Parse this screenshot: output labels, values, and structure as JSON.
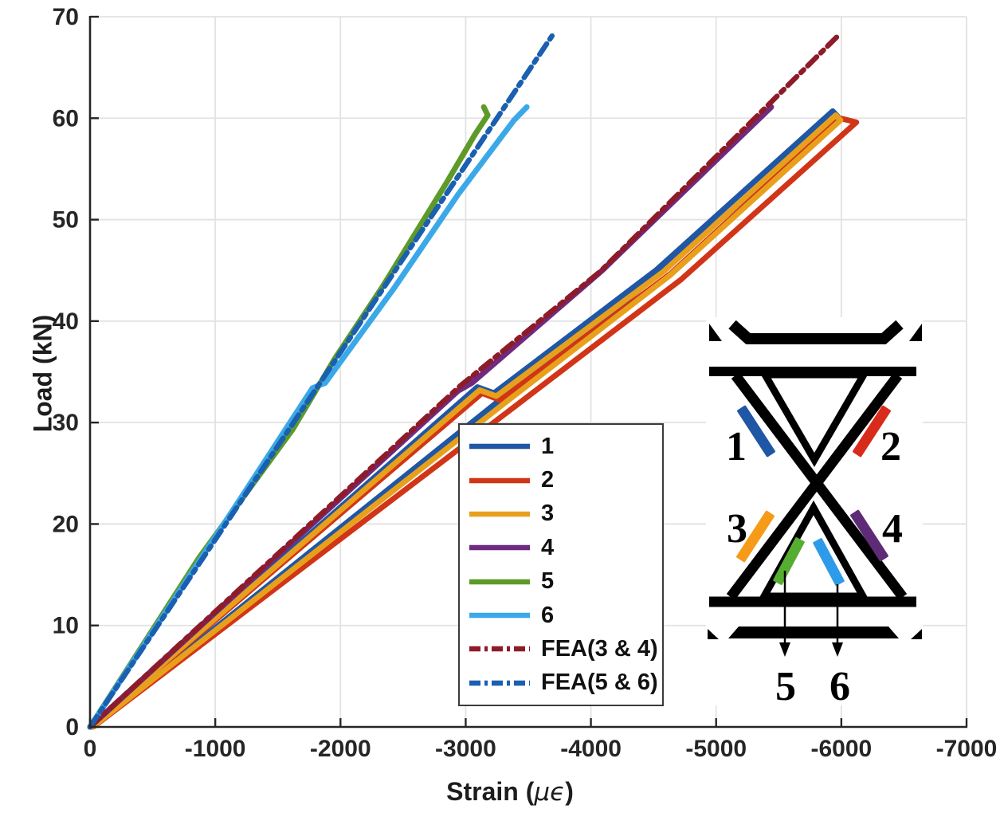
{
  "figure": {
    "ylabel": "Load (kN)",
    "xlabel_prefix": "Strain (",
    "xlabel_mu": "μϵ",
    "xlabel_suffix": ")"
  },
  "chart_data": {
    "type": "line",
    "title": "",
    "xlabel": "Strain (μϵ)",
    "ylabel": "Load (kN)",
    "xlim": [
      0,
      -7000
    ],
    "ylim": [
      0,
      70
    ],
    "x_axis_reversed": true,
    "grid": true,
    "legend_position": "inside-center",
    "x_ticks": [
      0,
      -1000,
      -2000,
      -3000,
      -4000,
      -5000,
      -6000,
      -7000
    ],
    "y_ticks": [
      0,
      10,
      20,
      30,
      40,
      50,
      60,
      70
    ],
    "series": [
      {
        "name": "1",
        "color": "#1F57A4",
        "style": "solid",
        "points": [
          [
            0,
            0
          ],
          [
            -3093,
            33.5
          ],
          [
            -3226,
            32.9
          ],
          [
            -4518,
            45.0
          ],
          [
            -5931,
            60.7
          ],
          [
            -5969,
            60.2
          ],
          [
            -4560,
            44.8
          ],
          [
            -3271,
            32.2
          ],
          [
            -13,
            0
          ]
        ]
      },
      {
        "name": "2",
        "color": "#D13517",
        "style": "solid",
        "points": [
          [
            0,
            0
          ],
          [
            -3131,
            32.9
          ],
          [
            -3277,
            32.2
          ],
          [
            -4640,
            44.7
          ],
          [
            -5988,
            60.0
          ],
          [
            -6120,
            59.6
          ],
          [
            -4720,
            44.1
          ],
          [
            -3373,
            31.4
          ],
          [
            -25,
            0
          ]
        ]
      },
      {
        "name": "3",
        "color": "#E8A01C",
        "style": "solid",
        "points": [
          [
            0,
            0
          ],
          [
            -3112,
            33.2
          ],
          [
            -3245,
            32.6
          ],
          [
            -4582,
            44.9
          ],
          [
            -5956,
            60.3
          ],
          [
            -5994,
            59.8
          ],
          [
            -4630,
            44.5
          ],
          [
            -3309,
            31.9
          ],
          [
            -19,
            0
          ]
        ]
      },
      {
        "name": "4",
        "color": "#6F2A80",
        "style": "solid",
        "points": [
          [
            0,
            0
          ],
          [
            -2920,
            32.9
          ],
          [
            -3060,
            34.5
          ],
          [
            -2950,
            33.2
          ],
          [
            -3050,
            33.9
          ],
          [
            -4091,
            45.0
          ],
          [
            -5440,
            61.1
          ]
        ]
      },
      {
        "name": "5",
        "color": "#5E9A28",
        "style": "solid",
        "points": [
          [
            0,
            0
          ],
          [
            -872,
            16.7
          ],
          [
            -1617,
            29.3
          ],
          [
            -1954,
            36.3
          ],
          [
            -2336,
            43.4
          ],
          [
            -2845,
            53.6
          ],
          [
            -3074,
            58.4
          ],
          [
            -3176,
            60.3
          ],
          [
            -3144,
            61.1
          ]
        ]
      },
      {
        "name": "6",
        "color": "#3BA8E8",
        "style": "solid",
        "points": [
          [
            0,
            0
          ],
          [
            -1190,
            22.3
          ],
          [
            -1776,
            33.4
          ],
          [
            -1878,
            33.9
          ],
          [
            -2431,
            43.3
          ],
          [
            -2940,
            52.5
          ],
          [
            -3386,
            59.8
          ],
          [
            -3488,
            61.1
          ]
        ]
      },
      {
        "name": "FEA(3 & 4)",
        "color": "#8E1B28",
        "style": "dashdot",
        "points": [
          [
            0,
            0
          ],
          [
            -2955,
            33.6
          ],
          [
            -4075,
            44.9
          ],
          [
            -5980,
            68.2
          ]
        ]
      },
      {
        "name": "FEA(5 & 6)",
        "color": "#1A5FB0",
        "style": "dashdot",
        "points": [
          [
            0,
            0
          ],
          [
            -3700,
            68.3
          ]
        ]
      }
    ]
  },
  "inset": {
    "description": "X-brace lattice unit with strain gauge locations",
    "gauges": [
      {
        "id": "1",
        "color": "#1F57A4"
      },
      {
        "id": "2",
        "color": "#D92B1B"
      },
      {
        "id": "3",
        "color": "#F59B17"
      },
      {
        "id": "4",
        "color": "#5E2C77"
      },
      {
        "id": "5",
        "color": "#56AE31"
      },
      {
        "id": "6",
        "color": "#2E9BE8"
      }
    ]
  }
}
